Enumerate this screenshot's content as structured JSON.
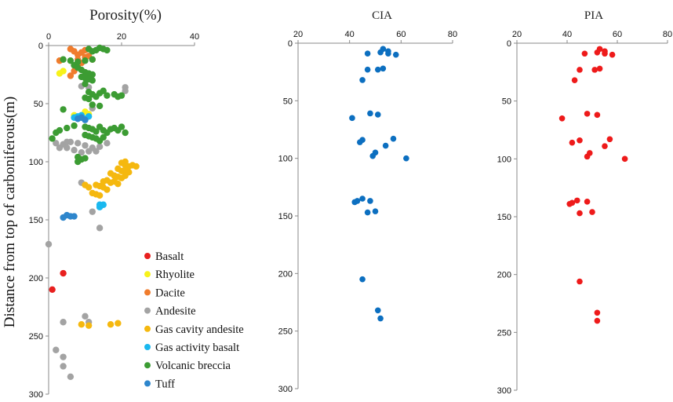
{
  "chart_data": [
    {
      "id": "porosity",
      "type": "scatter",
      "title": "Porosity(%)",
      "ylabel": "Distance from top of carboniferous(m)",
      "xlim": [
        0,
        40
      ],
      "ylim": [
        0,
        300
      ],
      "x_ticks": [
        "0",
        "20",
        "40"
      ],
      "y_ticks": [
        "0",
        "50",
        "100",
        "150",
        "200",
        "250",
        "300"
      ],
      "legend": [
        {
          "label": "Basalt",
          "color": "#e8201f"
        },
        {
          "label": "Rhyolite",
          "color": "#f7f21a"
        },
        {
          "label": "Dacite",
          "color": "#f07c2d"
        },
        {
          "label": "Andesite",
          "color": "#a3a3a3"
        },
        {
          "label": "Gas cavity andesite",
          "color": "#f5b80f"
        },
        {
          "label": "Gas activity basalt",
          "color": "#1ab8ef"
        },
        {
          "label": "Volcanic breccia",
          "color": "#3c9c33"
        },
        {
          "label": "Tuff",
          "color": "#2e86cc"
        }
      ],
      "series": [
        {
          "name": "Basalt",
          "points": [
            [
              4,
              196
            ],
            [
              1,
              210
            ]
          ]
        },
        {
          "name": "Rhyolite",
          "points": [
            [
              3,
              24
            ],
            [
              4,
              22
            ],
            [
              10,
              57
            ],
            [
              11,
              59
            ],
            [
              7,
              60
            ]
          ]
        },
        {
          "name": "Dacite",
          "points": [
            [
              6,
              3
            ],
            [
              7,
              5
            ],
            [
              8,
              8
            ],
            [
              9,
              6
            ],
            [
              10,
              10
            ],
            [
              8,
              12
            ],
            [
              9,
              15
            ],
            [
              3,
              13
            ],
            [
              6,
              26
            ],
            [
              7,
              22
            ],
            [
              10,
              4
            ],
            [
              11,
              9
            ],
            [
              12,
              12
            ],
            [
              7,
              17
            ]
          ]
        },
        {
          "name": "Andesite",
          "points": [
            [
              9,
              35
            ],
            [
              11,
              36
            ],
            [
              21,
              36
            ],
            [
              21,
              39
            ],
            [
              12,
              54
            ],
            [
              2,
              84
            ],
            [
              4,
              85
            ],
            [
              6,
              83
            ],
            [
              8,
              84
            ],
            [
              10,
              86
            ],
            [
              12,
              88
            ],
            [
              14,
              87
            ],
            [
              16,
              84
            ],
            [
              3,
              88
            ],
            [
              5,
              88
            ],
            [
              7,
              90
            ],
            [
              9,
              92
            ],
            [
              11,
              91
            ],
            [
              5,
              83
            ],
            [
              13,
              91
            ],
            [
              9,
              118
            ],
            [
              12,
              143
            ],
            [
              14,
              157
            ],
            [
              0,
              171
            ],
            [
              4,
              238
            ],
            [
              10,
              233
            ],
            [
              2,
              262
            ],
            [
              4,
              268
            ],
            [
              4,
              276
            ],
            [
              6,
              285
            ],
            [
              11,
              238
            ]
          ]
        },
        {
          "name": "Gas cavity andesite",
          "points": [
            [
              20,
              101
            ],
            [
              21,
              103
            ],
            [
              22,
              104
            ],
            [
              23,
              103
            ],
            [
              19,
              106
            ],
            [
              20,
              108
            ],
            [
              21,
              107
            ],
            [
              22,
              109
            ],
            [
              17,
              110
            ],
            [
              18,
              112
            ],
            [
              19,
              113
            ],
            [
              20,
              114
            ],
            [
              21,
              112
            ],
            [
              16,
              116
            ],
            [
              17,
              118
            ],
            [
              18,
              117
            ],
            [
              19,
              119
            ],
            [
              13,
              120
            ],
            [
              14,
              121
            ],
            [
              15,
              122
            ],
            [
              16,
              124
            ],
            [
              10,
              120
            ],
            [
              11,
              122
            ],
            [
              12,
              127
            ],
            [
              13,
              128
            ],
            [
              14,
              129
            ],
            [
              21,
              100
            ],
            [
              24,
              104
            ],
            [
              15,
              117
            ],
            [
              9,
              240
            ],
            [
              11,
              241
            ],
            [
              17,
              240
            ],
            [
              19,
              239
            ]
          ]
        },
        {
          "name": "Gas activity basalt",
          "points": [
            [
              7,
              62
            ],
            [
              8,
              61
            ],
            [
              9,
              60
            ],
            [
              10,
              63
            ],
            [
              11,
              61
            ],
            [
              14,
              137
            ],
            [
              14,
              139
            ],
            [
              15,
              137
            ]
          ]
        },
        {
          "name": "Volcanic breccia",
          "points": [
            [
              11,
              3
            ],
            [
              12,
              5
            ],
            [
              13,
              4
            ],
            [
              14,
              2
            ],
            [
              15,
              3
            ],
            [
              16,
              4
            ],
            [
              4,
              12
            ],
            [
              6,
              13
            ],
            [
              8,
              14
            ],
            [
              10,
              13
            ],
            [
              12,
              12
            ],
            [
              7,
              17
            ],
            [
              8,
              19
            ],
            [
              9,
              21
            ],
            [
              10,
              23
            ],
            [
              11,
              24
            ],
            [
              12,
              25
            ],
            [
              9,
              27
            ],
            [
              10,
              28
            ],
            [
              11,
              29
            ],
            [
              12,
              30
            ],
            [
              10,
              33
            ],
            [
              11,
              40
            ],
            [
              12,
              42
            ],
            [
              13,
              44
            ],
            [
              14,
              41
            ],
            [
              15,
              39
            ],
            [
              16,
              43
            ],
            [
              18,
              42
            ],
            [
              19,
              44
            ],
            [
              20,
              43
            ],
            [
              10,
              45
            ],
            [
              11,
              46
            ],
            [
              12,
              51
            ],
            [
              14,
              52
            ],
            [
              4,
              55
            ],
            [
              10,
              70
            ],
            [
              11,
              71
            ],
            [
              12,
              72
            ],
            [
              13,
              74
            ],
            [
              14,
              70
            ],
            [
              15,
              73
            ],
            [
              16,
              75
            ],
            [
              17,
              72
            ],
            [
              18,
              71
            ],
            [
              19,
              73
            ],
            [
              20,
              70
            ],
            [
              21,
              75
            ],
            [
              10,
              77
            ],
            [
              11,
              78
            ],
            [
              12,
              79
            ],
            [
              13,
              80
            ],
            [
              14,
              82
            ],
            [
              15,
              79
            ],
            [
              1,
              80
            ],
            [
              2,
              75
            ],
            [
              3,
              73
            ],
            [
              5,
              71
            ],
            [
              7,
              69
            ],
            [
              8,
              96
            ],
            [
              9,
              98
            ],
            [
              10,
              97
            ],
            [
              8,
              100
            ]
          ]
        },
        {
          "name": "Tuff",
          "points": [
            [
              9,
              62
            ],
            [
              10,
              64
            ],
            [
              8,
              63
            ],
            [
              4,
              148
            ],
            [
              5,
              146
            ],
            [
              6,
              147
            ],
            [
              7,
              147
            ]
          ]
        }
      ]
    },
    {
      "id": "cia",
      "type": "scatter",
      "title": "CIA",
      "xlim": [
        20,
        80
      ],
      "ylim": [
        0,
        300
      ],
      "x_ticks": [
        "20",
        "40",
        "60",
        "80"
      ],
      "y_ticks": [
        "0",
        "50",
        "100",
        "150",
        "200",
        "250",
        "300"
      ],
      "color": "#0c6fc0",
      "points": [
        [
          53,
          5
        ],
        [
          55,
          7
        ],
        [
          52,
          8
        ],
        [
          55,
          9
        ],
        [
          47,
          9
        ],
        [
          58,
          10
        ],
        [
          51,
          23
        ],
        [
          47,
          23
        ],
        [
          53,
          22
        ],
        [
          45,
          32
        ],
        [
          48,
          61
        ],
        [
          51,
          62
        ],
        [
          41,
          65
        ],
        [
          57,
          83
        ],
        [
          45,
          84
        ],
        [
          44,
          86
        ],
        [
          54,
          89
        ],
        [
          50,
          95
        ],
        [
          49,
          98
        ],
        [
          62,
          100
        ],
        [
          45,
          135
        ],
        [
          43,
          137
        ],
        [
          42,
          138
        ],
        [
          48,
          137
        ],
        [
          50,
          146
        ],
        [
          47,
          147
        ],
        [
          45,
          205
        ],
        [
          51,
          232
        ],
        [
          52,
          239
        ]
      ]
    },
    {
      "id": "pia",
      "type": "scatter",
      "title": "PIA",
      "xlim": [
        20,
        80
      ],
      "ylim": [
        0,
        300
      ],
      "x_ticks": [
        "20",
        "40",
        "60",
        "80"
      ],
      "y_ticks": [
        "0",
        "50",
        "100",
        "150",
        "200",
        "250",
        "300"
      ],
      "color": "#ee1a1a",
      "points": [
        [
          53,
          5
        ],
        [
          55,
          7
        ],
        [
          52,
          8
        ],
        [
          55,
          9
        ],
        [
          47,
          9
        ],
        [
          58,
          10
        ],
        [
          51,
          23
        ],
        [
          45,
          23
        ],
        [
          53,
          22
        ],
        [
          43,
          32
        ],
        [
          48,
          61
        ],
        [
          52,
          62
        ],
        [
          38,
          65
        ],
        [
          57,
          83
        ],
        [
          45,
          84
        ],
        [
          42,
          86
        ],
        [
          55,
          89
        ],
        [
          49,
          95
        ],
        [
          48,
          98
        ],
        [
          63,
          100
        ],
        [
          44,
          136
        ],
        [
          42,
          138
        ],
        [
          41,
          139
        ],
        [
          48,
          137
        ],
        [
          50,
          146
        ],
        [
          45,
          147
        ],
        [
          45,
          206
        ],
        [
          52,
          233
        ],
        [
          52,
          240
        ]
      ]
    }
  ]
}
